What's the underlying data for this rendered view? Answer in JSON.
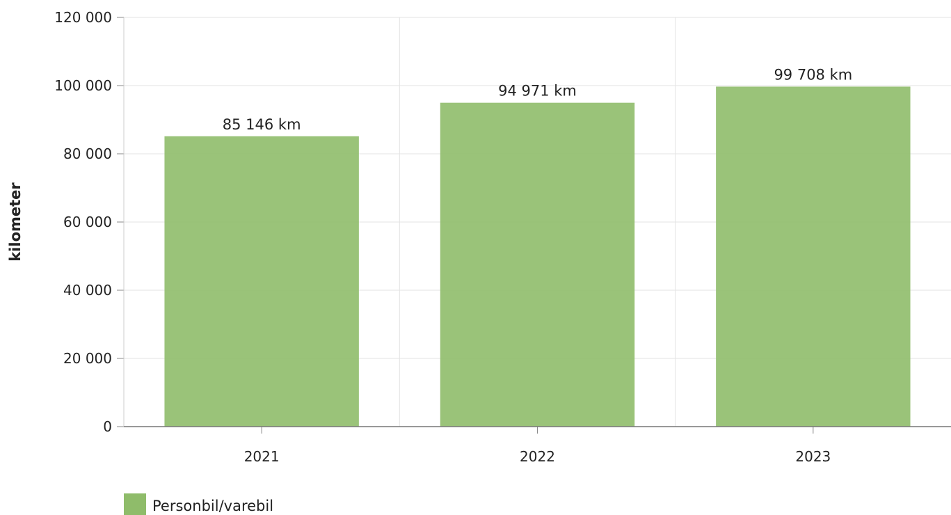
{
  "chart_data": {
    "type": "bar",
    "categories": [
      "2021",
      "2022",
      "2023"
    ],
    "series": [
      {
        "name": "Personbil/varebil",
        "values": [
          85146,
          94971,
          99708
        ],
        "color": "#8fbc6a"
      }
    ],
    "data_labels": [
      "85 146 km",
      "94 971 km",
      "99 708 km"
    ],
    "ylabel": "kilometer",
    "xlabel": "",
    "ylim": [
      0,
      120000
    ],
    "yticks": [
      0,
      20000,
      40000,
      60000,
      80000,
      100000,
      120000
    ],
    "ytick_labels": [
      "0",
      "20 000",
      "40 000",
      "60 000",
      "80 000",
      "100 000",
      "120 000"
    ],
    "grid": true,
    "legend_position": "bottom-left"
  }
}
